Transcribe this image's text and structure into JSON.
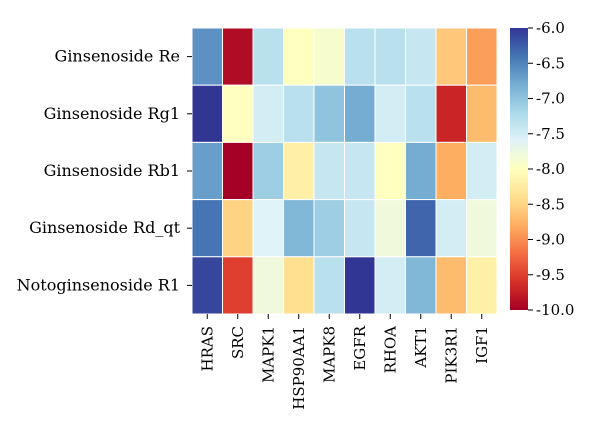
{
  "chart_data": {
    "type": "heatmap",
    "title": "",
    "xlabel": "",
    "ylabel": "",
    "rows": [
      "Ginsenoside Re",
      "Ginsenoside Rg1",
      "Ginsenoside Rb1",
      "Ginsenoside Rd_qt",
      "Notoginsenoside R1"
    ],
    "columns": [
      "HRAS",
      "SRC",
      "MAPK1",
      "HSP90AA1",
      "MAPK8",
      "EGFR",
      "RHOA",
      "AKT1",
      "PIK3R1",
      "IGF1"
    ],
    "values": [
      [
        -6.6,
        -9.9,
        -7.3,
        -8.0,
        -7.9,
        -7.3,
        -7.3,
        -7.4,
        -8.6,
        -8.9
      ],
      [
        -6.0,
        -8.0,
        -7.5,
        -7.3,
        -7.0,
        -6.8,
        -7.5,
        -7.3,
        -9.7,
        -8.7
      ],
      [
        -6.7,
        -10.0,
        -7.1,
        -8.2,
        -7.4,
        -7.4,
        -8.0,
        -6.8,
        -8.8,
        -7.5
      ],
      [
        -6.4,
        -8.5,
        -7.6,
        -6.9,
        -7.1,
        -7.4,
        -7.8,
        -6.3,
        -7.5,
        -7.8
      ],
      [
        -6.1,
        -9.5,
        -7.8,
        -8.4,
        -7.3,
        -6.0,
        -7.5,
        -6.9,
        -8.7,
        -8.2
      ]
    ],
    "colorbar": {
      "min": -10.0,
      "max": -6.0,
      "ticks": [
        "-6.0",
        "-6.5",
        "-7.0",
        "-7.5",
        "-8.0",
        "-8.5",
        "-9.0",
        "-9.5",
        "-10.0"
      ],
      "colormap": "RdYlBu",
      "stops": [
        "#a50026",
        "#d73027",
        "#f46d43",
        "#fdae61",
        "#fee090",
        "#ffffbf",
        "#e0f3f8",
        "#abd9e9",
        "#74add1",
        "#4575b4",
        "#313695"
      ]
    },
    "grid": true,
    "cell_border_color": "#ffffff"
  }
}
